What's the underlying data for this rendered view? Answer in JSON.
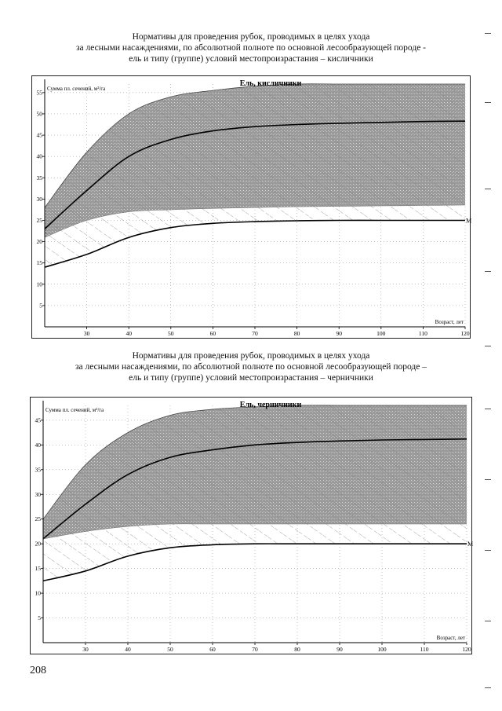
{
  "page": {
    "number": "208",
    "captions": [
      {
        "lines": [
          "Нормативы для проведения рубок, проводимых в целях ухода",
          "за лесными насаждениями, по абсолютной полноте по основной лесообразующей породе -",
          "ель и типу (группе) условий местопроизрастания – кисличники"
        ]
      },
      {
        "lines": [
          "Нормативы для проведения рубок, проводимых в целях ухода",
          "за лесными насаждениями, по абсолютной полноте по основной лесообразующей породе –",
          "ель и типу (группе) условий местопроизрастания – черничники"
        ]
      }
    ]
  },
  "chart_data": [
    {
      "type": "area",
      "title": "Ель, кисличники",
      "ylabel": "Сумма пл. сечений, м²/га",
      "xlabel": "Возраст, лет",
      "xlim": [
        20,
        120
      ],
      "ylim": [
        0,
        57
      ],
      "x_ticks": [
        30,
        40,
        50,
        60,
        70,
        80,
        90,
        100,
        110,
        120
      ],
      "y_ticks": [
        5,
        10,
        15,
        20,
        25,
        30,
        35,
        40,
        45,
        50,
        55
      ],
      "grid": true,
      "marker_label": "М",
      "x": [
        20,
        30,
        40,
        50,
        60,
        70,
        80,
        90,
        100,
        110,
        120
      ],
      "series": [
        {
          "role": "upper-boundary",
          "values": [
            28,
            41,
            50,
            54,
            55.5,
            56.5,
            57,
            57,
            57,
            57,
            57
          ]
        },
        {
          "role": "optimal",
          "values": [
            23,
            32,
            40,
            44,
            46,
            47,
            47.5,
            47.8,
            48,
            48.2,
            48.3
          ]
        },
        {
          "role": "lower-boundary-shaded",
          "values": [
            21,
            25,
            27,
            27.5,
            27.8,
            28,
            28.2,
            28.3,
            28.4,
            28.5,
            28.6
          ]
        },
        {
          "role": "minimum-M",
          "values": [
            14,
            17,
            21,
            23.3,
            24.3,
            24.7,
            24.9,
            25,
            25,
            25,
            25
          ]
        }
      ]
    },
    {
      "type": "area",
      "title": "Ель, черничники",
      "ylabel": "Сумма пл. сечений, м²/га",
      "xlabel": "Возраст, лет",
      "xlim": [
        20,
        120
      ],
      "ylim": [
        0,
        48
      ],
      "x_ticks": [
        30,
        40,
        50,
        60,
        70,
        80,
        90,
        100,
        110,
        120
      ],
      "y_ticks": [
        5,
        10,
        15,
        20,
        25,
        30,
        35,
        40,
        45
      ],
      "grid": true,
      "marker_label": "М",
      "x": [
        20,
        30,
        40,
        50,
        60,
        70,
        80,
        90,
        100,
        110,
        120
      ],
      "series": [
        {
          "role": "upper-boundary",
          "values": [
            25,
            36,
            42.5,
            46,
            47.2,
            47.7,
            48,
            48,
            48,
            48,
            48
          ]
        },
        {
          "role": "optimal",
          "values": [
            21,
            28,
            34,
            37.5,
            39,
            40,
            40.5,
            40.8,
            41,
            41.1,
            41.2
          ]
        },
        {
          "role": "lower-boundary-shaded",
          "values": [
            21,
            22.5,
            23.5,
            24,
            24,
            24,
            24,
            24,
            24,
            24,
            24
          ]
        },
        {
          "role": "minimum-M",
          "values": [
            12.5,
            14.5,
            17.5,
            19.2,
            19.8,
            20,
            20,
            20,
            20,
            20,
            20
          ]
        }
      ]
    }
  ]
}
